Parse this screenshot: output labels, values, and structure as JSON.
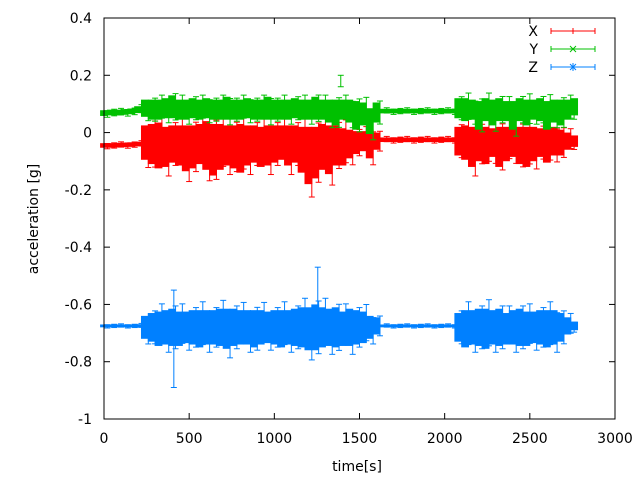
{
  "chart_data": {
    "type": "scatter",
    "title": "",
    "xlabel": "time[s]",
    "ylabel": "acceleration [g]",
    "xlim": [
      0,
      3000
    ],
    "ylim": [
      -1,
      0.4
    ],
    "xticks": [
      "0",
      "500",
      "1000",
      "1500",
      "2000",
      "2500",
      "3000"
    ],
    "yticks": [
      "-1",
      "-0.8",
      "-0.6",
      "-0.4",
      "-0.2",
      "0",
      "0.2",
      "0.4"
    ],
    "grid": false,
    "legend_position": "top-right",
    "error_bars": true,
    "t_step": 40,
    "series": [
      {
        "name": "X",
        "color": "#ff0000",
        "marker": "plus",
        "mean": [
          -0.045,
          -0.045,
          -0.044,
          -0.043,
          -0.042,
          -0.04,
          -0.035,
          -0.04,
          -0.045,
          -0.05,
          -0.04,
          -0.045,
          -0.055,
          -0.05,
          -0.04,
          -0.045,
          -0.06,
          -0.05,
          -0.045,
          -0.05,
          -0.055,
          -0.045,
          -0.04,
          -0.05,
          -0.045,
          -0.04,
          -0.035,
          -0.045,
          -0.04,
          -0.06,
          -0.08,
          -0.07,
          -0.05,
          -0.06,
          -0.045,
          -0.05,
          -0.04,
          -0.035,
          -0.03,
          -0.04,
          -0.03,
          -0.025,
          -0.025,
          -0.025,
          -0.025,
          -0.025,
          -0.025,
          -0.025,
          -0.025,
          -0.025,
          -0.025,
          -0.025,
          -0.03,
          -0.035,
          -0.05,
          -0.04,
          -0.045,
          -0.035,
          -0.05,
          -0.04,
          -0.035,
          -0.045,
          -0.05,
          -0.04,
          -0.035,
          -0.045,
          -0.03,
          -0.035,
          -0.03,
          -0.03
        ],
        "err": [
          0.008,
          0.008,
          0.008,
          0.008,
          0.008,
          0.008,
          0.06,
          0.07,
          0.08,
          0.07,
          0.065,
          0.07,
          0.08,
          0.075,
          0.07,
          0.085,
          0.09,
          0.08,
          0.07,
          0.075,
          0.085,
          0.07,
          0.065,
          0.07,
          0.07,
          0.065,
          0.06,
          0.07,
          0.065,
          0.08,
          0.1,
          0.09,
          0.08,
          0.085,
          0.07,
          0.065,
          0.05,
          0.04,
          0.035,
          0.05,
          0.03,
          0.008,
          0.008,
          0.008,
          0.008,
          0.008,
          0.008,
          0.008,
          0.008,
          0.008,
          0.008,
          0.008,
          0.05,
          0.06,
          0.07,
          0.06,
          0.065,
          0.05,
          0.07,
          0.06,
          0.05,
          0.065,
          0.07,
          0.06,
          0.05,
          0.06,
          0.05,
          0.045,
          0.03,
          0.02
        ]
      },
      {
        "name": "Y",
        "color": "#00c000",
        "marker": "cross",
        "mean": [
          0.068,
          0.07,
          0.07,
          0.072,
          0.074,
          0.08,
          0.085,
          0.08,
          0.08,
          0.085,
          0.09,
          0.08,
          0.08,
          0.085,
          0.08,
          0.085,
          0.08,
          0.08,
          0.085,
          0.08,
          0.08,
          0.085,
          0.08,
          0.08,
          0.085,
          0.08,
          0.08,
          0.08,
          0.085,
          0.08,
          0.08,
          0.085,
          0.08,
          0.075,
          0.07,
          0.08,
          0.075,
          0.06,
          0.065,
          0.04,
          0.07,
          0.075,
          0.075,
          0.075,
          0.075,
          0.075,
          0.075,
          0.075,
          0.075,
          0.075,
          0.075,
          0.075,
          0.085,
          0.08,
          0.08,
          0.06,
          0.08,
          0.07,
          0.08,
          0.075,
          0.06,
          0.08,
          0.07,
          0.08,
          0.08,
          0.06,
          0.075,
          0.07,
          0.08,
          0.09
        ],
        "err": [
          0.01,
          0.01,
          0.01,
          0.01,
          0.01,
          0.012,
          0.03,
          0.035,
          0.035,
          0.035,
          0.04,
          0.035,
          0.035,
          0.035,
          0.035,
          0.035,
          0.035,
          0.035,
          0.04,
          0.035,
          0.035,
          0.035,
          0.035,
          0.035,
          0.04,
          0.035,
          0.035,
          0.035,
          0.035,
          0.035,
          0.035,
          0.04,
          0.035,
          0.04,
          0.045,
          0.035,
          0.04,
          0.05,
          0.04,
          0.045,
          0.035,
          0.008,
          0.008,
          0.008,
          0.008,
          0.008,
          0.008,
          0.008,
          0.008,
          0.008,
          0.008,
          0.008,
          0.035,
          0.04,
          0.035,
          0.05,
          0.04,
          0.045,
          0.04,
          0.035,
          0.05,
          0.04,
          0.045,
          0.035,
          0.04,
          0.05,
          0.04,
          0.045,
          0.035,
          0.03
        ],
        "outliers": [
          {
            "t": 1390,
            "y": 0.18,
            "err": 0.02
          }
        ]
      },
      {
        "name": "Z",
        "color": "#0080ff",
        "marker": "star",
        "mean": [
          -0.675,
          -0.675,
          -0.675,
          -0.675,
          -0.675,
          -0.675,
          -0.68,
          -0.68,
          -0.685,
          -0.68,
          -0.68,
          -0.685,
          -0.68,
          -0.68,
          -0.685,
          -0.68,
          -0.68,
          -0.68,
          -0.685,
          -0.68,
          -0.68,
          -0.68,
          -0.685,
          -0.68,
          -0.68,
          -0.68,
          -0.685,
          -0.68,
          -0.68,
          -0.68,
          -0.685,
          -0.68,
          -0.68,
          -0.68,
          -0.68,
          -0.685,
          -0.68,
          -0.68,
          -0.68,
          -0.68,
          -0.675,
          -0.675,
          -0.675,
          -0.675,
          -0.675,
          -0.675,
          -0.675,
          -0.675,
          -0.675,
          -0.675,
          -0.675,
          -0.675,
          -0.68,
          -0.685,
          -0.68,
          -0.68,
          -0.685,
          -0.68,
          -0.68,
          -0.685,
          -0.68,
          -0.68,
          -0.685,
          -0.68,
          -0.68,
          -0.685,
          -0.68,
          -0.68,
          -0.675,
          -0.675
        ],
        "err": [
          0.005,
          0.005,
          0.005,
          0.005,
          0.005,
          0.006,
          0.04,
          0.05,
          0.06,
          0.06,
          0.065,
          0.06,
          0.055,
          0.06,
          0.065,
          0.06,
          0.06,
          0.065,
          0.07,
          0.065,
          0.06,
          0.06,
          0.065,
          0.06,
          0.055,
          0.06,
          0.065,
          0.06,
          0.065,
          0.07,
          0.075,
          0.08,
          0.07,
          0.065,
          0.07,
          0.06,
          0.065,
          0.06,
          0.055,
          0.04,
          0.03,
          0.005,
          0.005,
          0.005,
          0.005,
          0.005,
          0.005,
          0.005,
          0.005,
          0.005,
          0.005,
          0.005,
          0.05,
          0.065,
          0.06,
          0.065,
          0.07,
          0.06,
          0.065,
          0.055,
          0.06,
          0.065,
          0.06,
          0.055,
          0.06,
          0.065,
          0.06,
          0.05,
          0.03,
          0.015
        ],
        "outliers": [
          {
            "t": 410,
            "y": -0.72,
            "err": 0.17
          },
          {
            "t": 1255,
            "y": -0.55,
            "err": 0.08
          }
        ]
      }
    ]
  }
}
